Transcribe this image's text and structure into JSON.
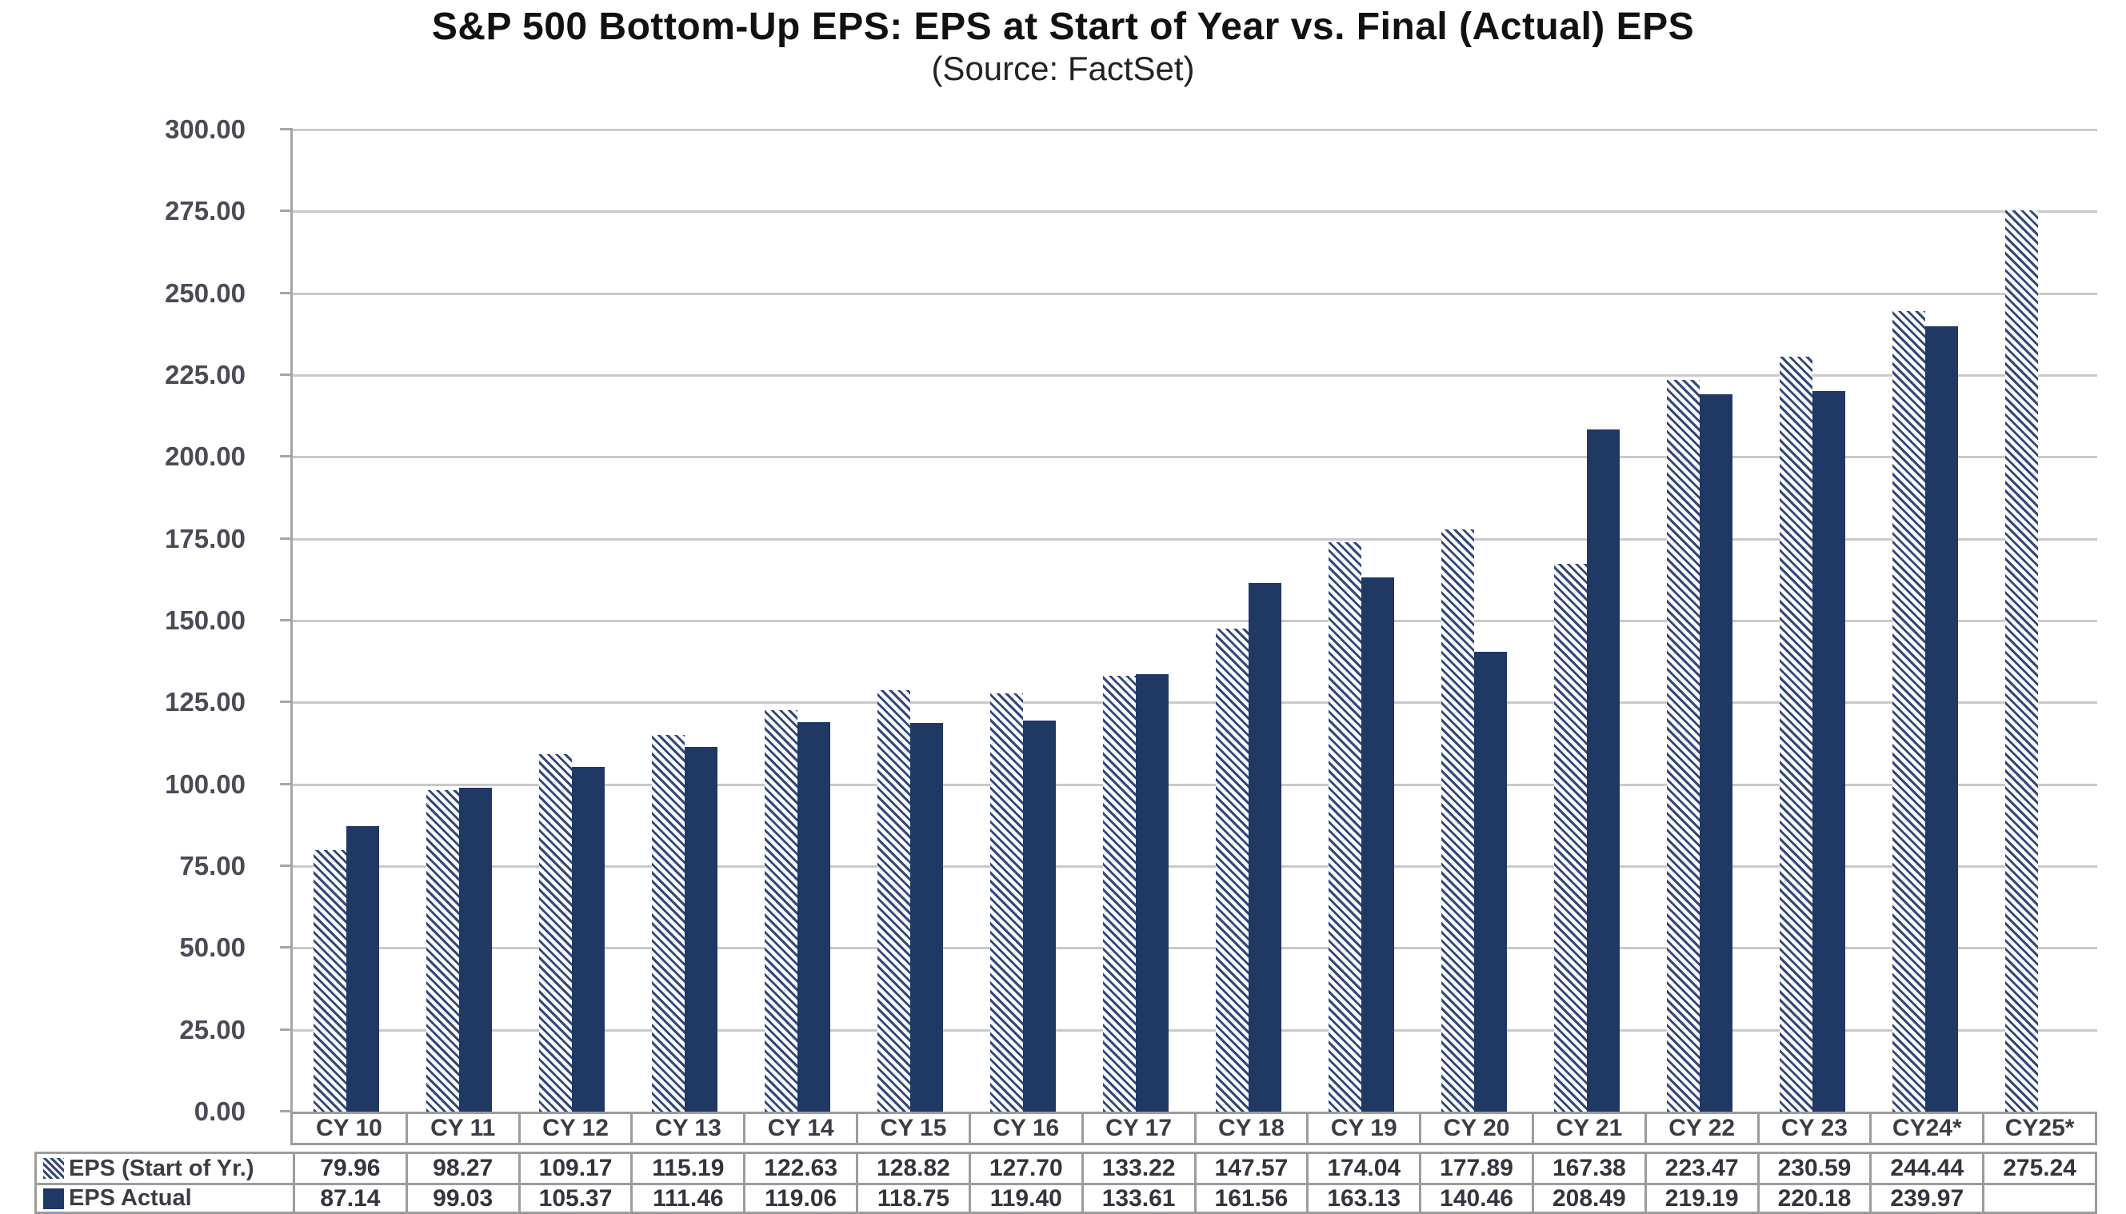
{
  "title": "S&P 500 Bottom-Up EPS: EPS at Start of Year vs. Final (Actual) EPS",
  "subtitle": "(Source: FactSet)",
  "colors": {
    "bar_solid": "#1F3864",
    "bar_hatch_stroke": "#33477A",
    "gridline": "#C9C9C9",
    "axis_line": "#A6A6A6",
    "table_border": "#9C9C9C"
  },
  "legend": [
    {
      "label": "EPS (Start of Yr.)",
      "icon": "hatched-square-icon"
    },
    {
      "label": "EPS Actual",
      "icon": "solid-square-icon"
    }
  ],
  "chart_data": {
    "type": "bar",
    "title": "S&P 500 Bottom-Up EPS: EPS at Start of Year vs. Final (Actual) EPS",
    "subtitle": "(Source: FactSet)",
    "categories": [
      "CY 10",
      "CY 11",
      "CY 12",
      "CY 13",
      "CY 14",
      "CY 15",
      "CY 16",
      "CY 17",
      "CY 18",
      "CY 19",
      "CY 20",
      "CY 21",
      "CY 22",
      "CY 23",
      "CY24*",
      "CY25*"
    ],
    "series": [
      {
        "name": "EPS (Start of Yr.)",
        "style": "hatched",
        "values": [
          79.96,
          98.27,
          109.17,
          115.19,
          122.63,
          128.82,
          127.7,
          133.22,
          147.57,
          174.04,
          177.89,
          167.38,
          223.47,
          230.59,
          244.44,
          275.24
        ]
      },
      {
        "name": "EPS Actual",
        "style": "solid",
        "values": [
          87.14,
          99.03,
          105.37,
          111.46,
          119.06,
          118.75,
          119.4,
          133.61,
          161.56,
          163.13,
          140.46,
          208.49,
          219.19,
          220.18,
          239.97,
          null
        ]
      }
    ],
    "ylim": [
      0,
      300
    ],
    "ytick_step": 25,
    "ytick_labels": [
      "0.00",
      "25.00",
      "50.00",
      "75.00",
      "100.00",
      "125.00",
      "150.00",
      "175.00",
      "200.00",
      "225.00",
      "250.00",
      "275.00",
      "300.00"
    ],
    "grid": true,
    "legend_position": "table-left",
    "value_format": "2dp"
  }
}
